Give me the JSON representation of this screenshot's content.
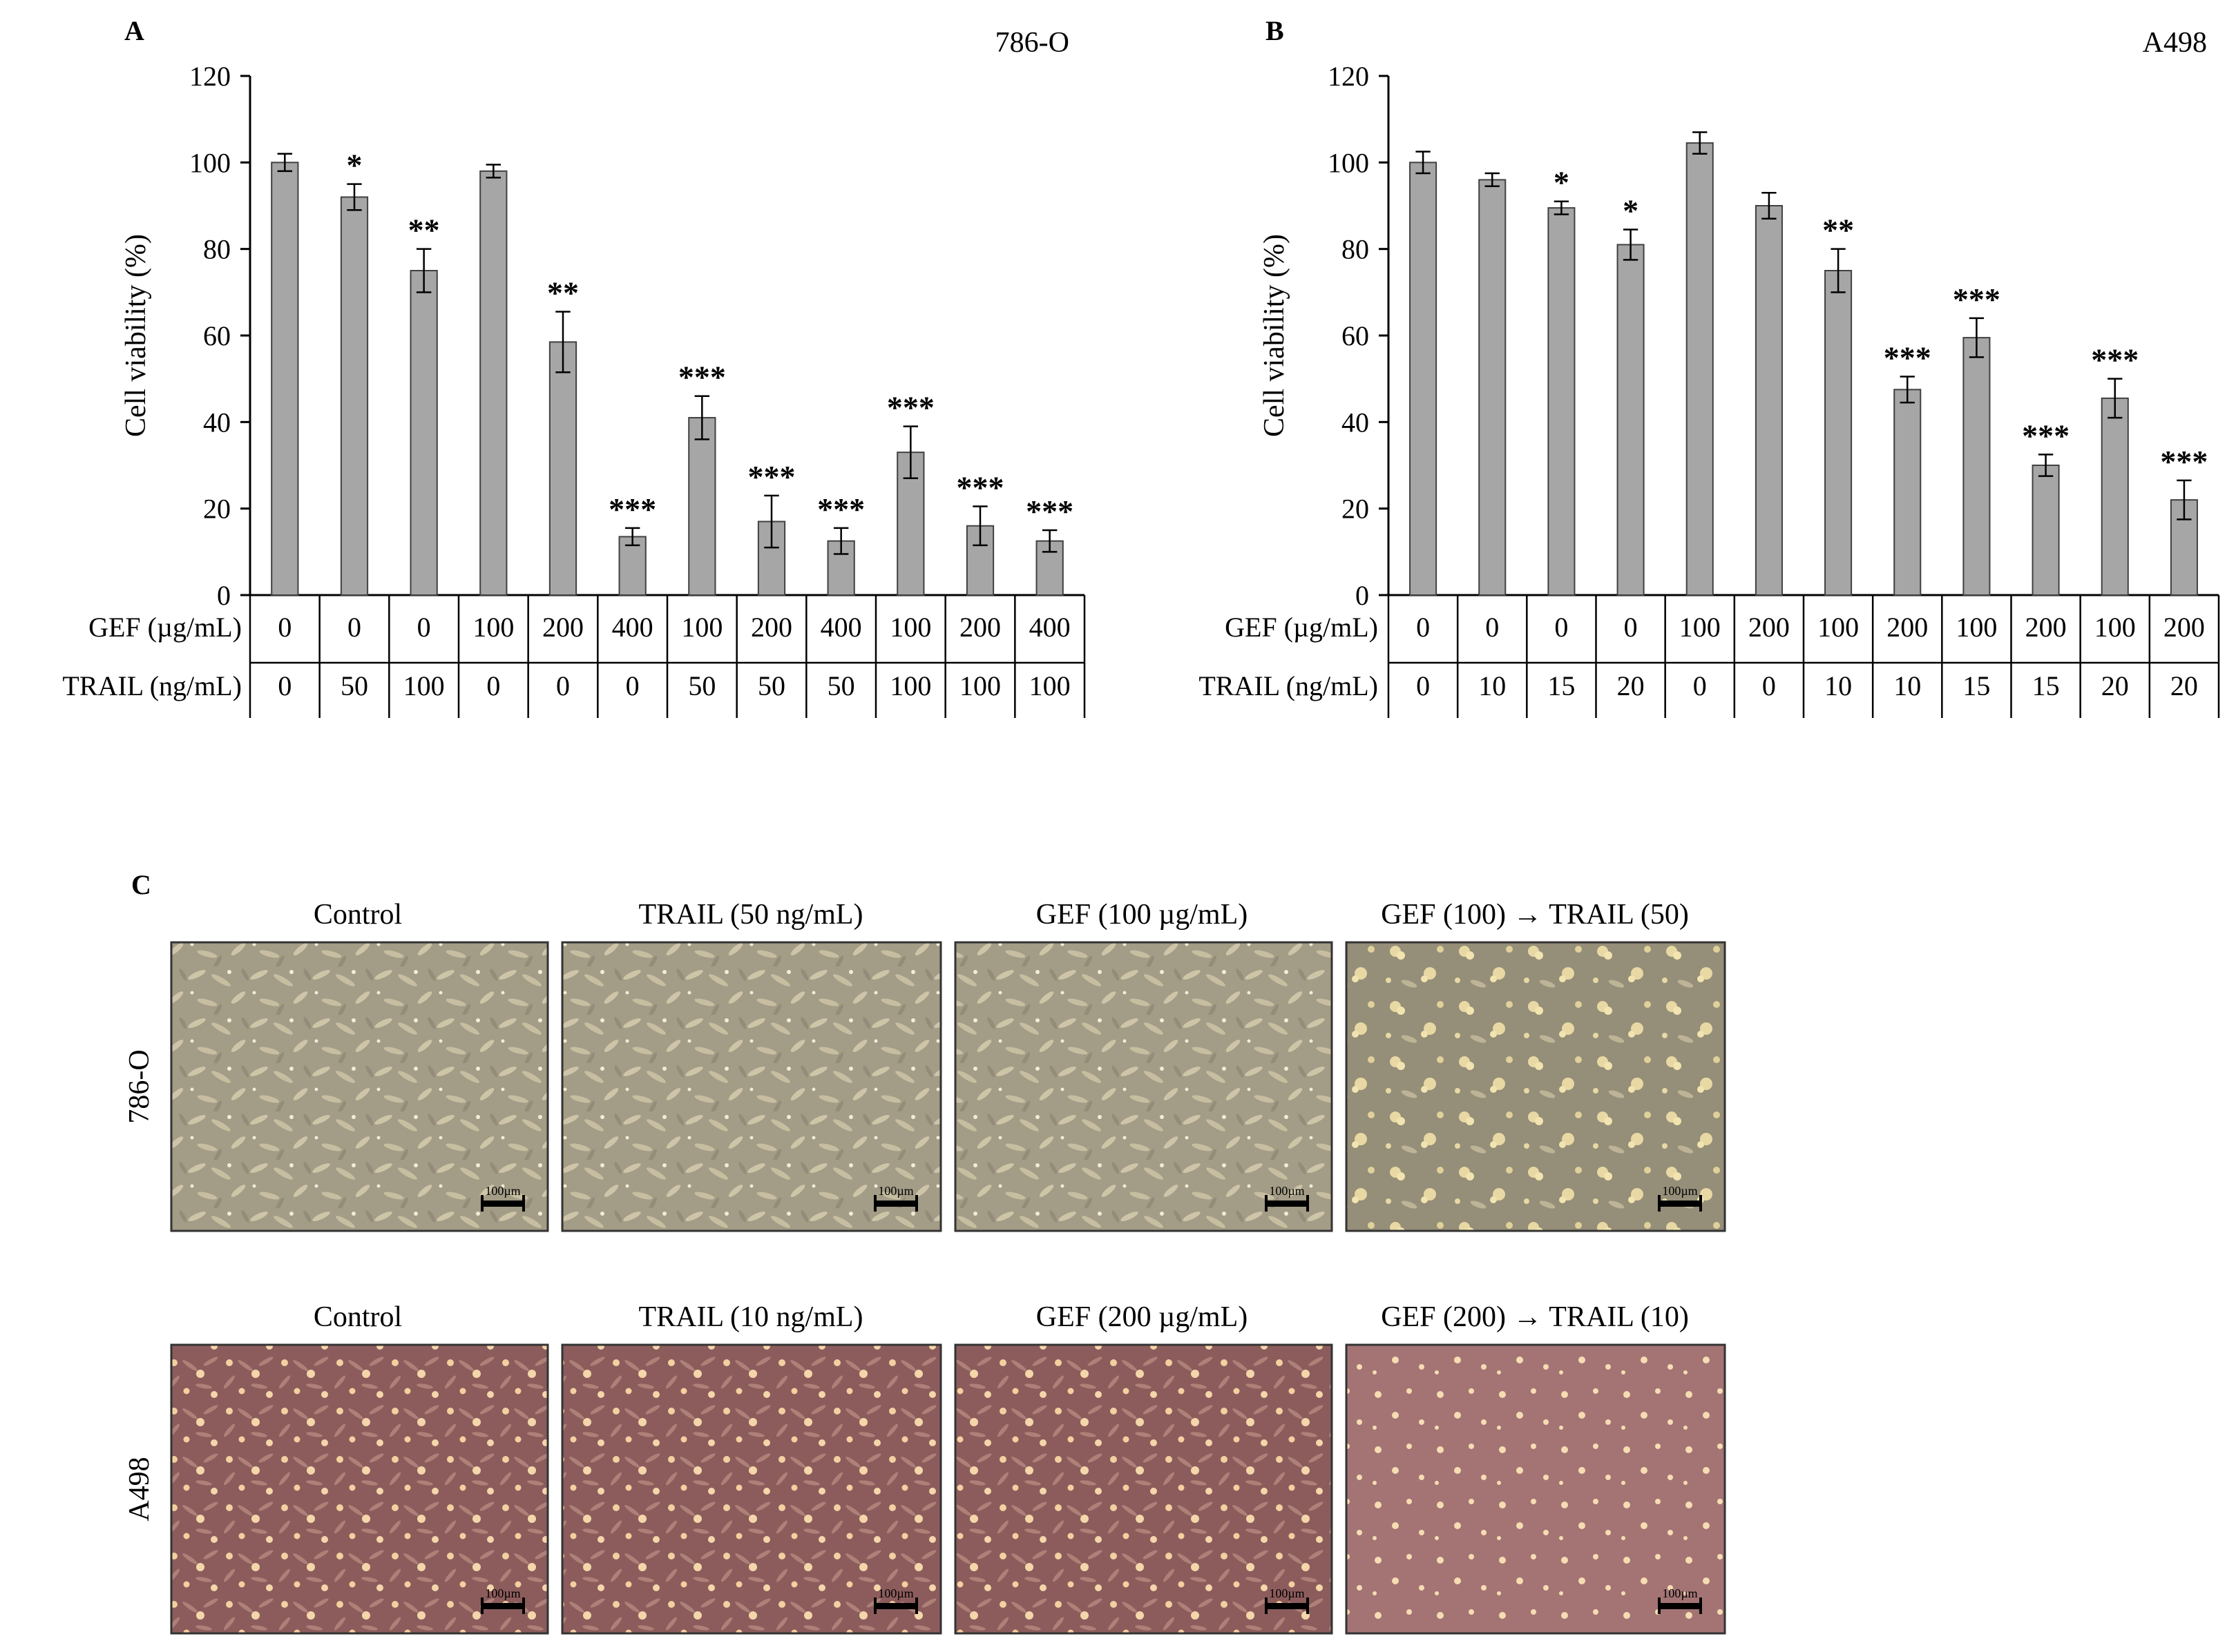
{
  "colors": {
    "bar_fill": "#a6a6a6",
    "bar_stroke": "#404040",
    "axis": "#000000",
    "micro_786O_base": "#9c9682",
    "micro_786O_cells": "#dcd4b6",
    "micro_A498_base": "#8a5a5a",
    "micro_A498_cells": "#f2d0a4"
  },
  "panel_letters": {
    "A": "A",
    "B": "B",
    "C": "C"
  },
  "chart_data": [
    {
      "type": "bar",
      "panel": "A",
      "title": "786-O",
      "ylabel": "Cell viability (%)",
      "ylim": [
        0,
        120
      ],
      "yticks": [
        0,
        20,
        40,
        60,
        80,
        100,
        120
      ],
      "row_labels": [
        "GEF (µg/mL)",
        "TRAIL (ng/mL)"
      ],
      "categories_gef": [
        "0",
        "0",
        "0",
        "100",
        "200",
        "400",
        "100",
        "200",
        "400",
        "100",
        "200",
        "400"
      ],
      "categories_trail": [
        "0",
        "50",
        "100",
        "0",
        "0",
        "0",
        "50",
        "50",
        "50",
        "100",
        "100",
        "100"
      ],
      "values": [
        100,
        92,
        75,
        98,
        58.5,
        13.5,
        41,
        17,
        12.5,
        33,
        16,
        12.5
      ],
      "errors": [
        2,
        3,
        5,
        1.5,
        7,
        2,
        5,
        6,
        3,
        6,
        4.5,
        2.5
      ],
      "significance": [
        "",
        "*",
        "**",
        "",
        "**",
        "***",
        "***",
        "***",
        "***",
        "***",
        "***",
        "***"
      ],
      "grid": false
    },
    {
      "type": "bar",
      "panel": "B",
      "title": "A498",
      "ylabel": "Cell viability (%)",
      "ylim": [
        0,
        120
      ],
      "yticks": [
        0,
        20,
        40,
        60,
        80,
        100,
        120
      ],
      "row_labels": [
        "GEF (µg/mL)",
        "TRAIL (ng/mL)"
      ],
      "categories_gef": [
        "0",
        "0",
        "0",
        "0",
        "100",
        "200",
        "100",
        "200",
        "100",
        "200",
        "100",
        "200"
      ],
      "categories_trail": [
        "0",
        "10",
        "15",
        "20",
        "0",
        "0",
        "10",
        "10",
        "15",
        "15",
        "20",
        "20"
      ],
      "values": [
        100,
        96,
        89.5,
        81,
        104.5,
        90,
        75,
        47.5,
        59.5,
        30,
        45.5,
        22
      ],
      "errors": [
        2.5,
        1.5,
        1.5,
        3.5,
        2.5,
        3,
        5,
        3,
        4.5,
        2.5,
        4.5,
        4.5
      ],
      "significance": [
        "",
        "",
        "*",
        "*",
        "",
        "",
        "**",
        "***",
        "***",
        "***",
        "***",
        "***"
      ],
      "grid": false
    }
  ],
  "micrographs": {
    "columns": [
      "Control",
      "TRAIL (50 ng/mL)",
      "GEF (100 µg/mL)",
      "GEF (100) → TRAIL (50)"
    ],
    "columns_row2": [
      "Control",
      "TRAIL (10 ng/mL)",
      "GEF (200 µg/mL)",
      "GEF (200) → TRAIL (10)"
    ],
    "rows": [
      "786-O",
      "A498"
    ],
    "scalebar": "100µm"
  }
}
